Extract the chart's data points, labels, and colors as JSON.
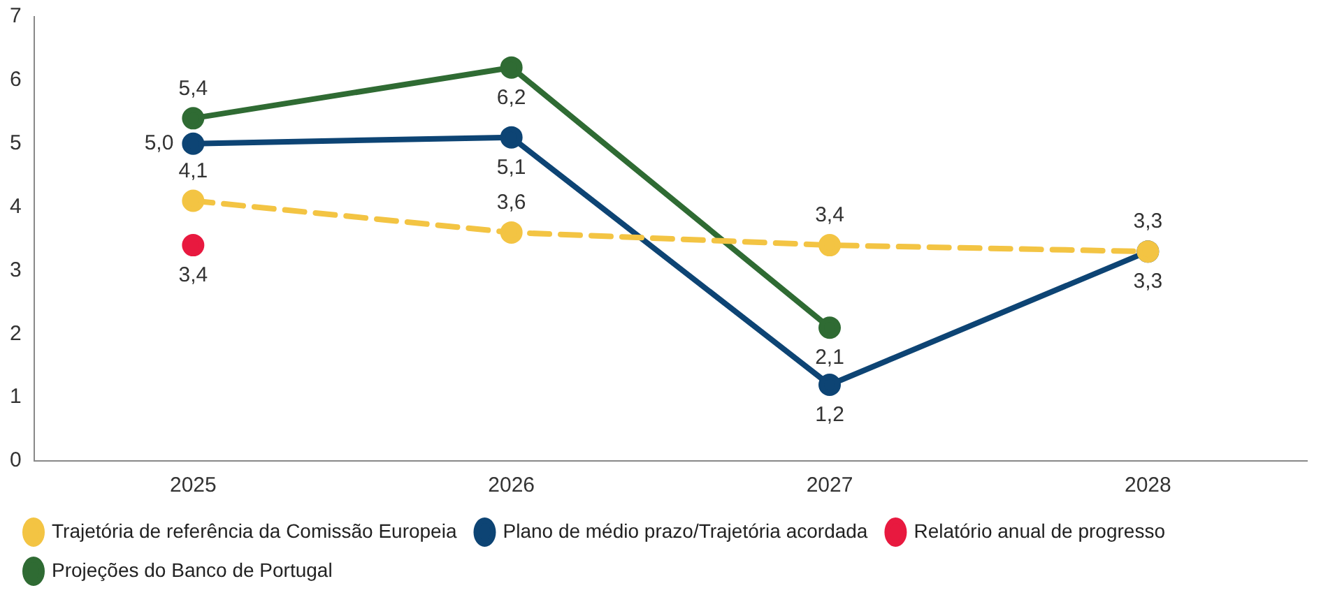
{
  "chart_data": {
    "type": "line",
    "categories": [
      "2025",
      "2026",
      "2027",
      "2028"
    ],
    "ylim": [
      0,
      7
    ],
    "yticks": [
      0,
      1,
      2,
      3,
      4,
      5,
      6,
      7
    ],
    "grid": false,
    "legend": "bottom",
    "marker": "circle",
    "series": [
      {
        "name": "Trajetória de referência da Comissão Europeia",
        "color": "#f3c443",
        "line_style": "dashed",
        "values": [
          4.1,
          3.6,
          3.4,
          3.3
        ],
        "value_labels": [
          "4,1",
          "3,6",
          "3,4",
          "3,3"
        ]
      },
      {
        "name": "Plano de médio prazo/Trajetória acordada",
        "color": "#0d4474",
        "values": [
          5.0,
          5.1,
          1.2,
          3.3
        ],
        "value_labels": [
          "5,0",
          "5,1",
          "1,2",
          "3,3"
        ]
      },
      {
        "name": "Relatório anual de progresso",
        "color": "#e8193f",
        "type": "scatter",
        "values": [
          3.4,
          null,
          null,
          null
        ],
        "value_labels": [
          "3,4",
          null,
          null,
          null
        ]
      },
      {
        "name": "Projeções do Banco de Portugal",
        "color": "#2f6b33",
        "values": [
          5.4,
          6.2,
          2.1,
          null
        ],
        "value_labels": [
          "5,4",
          "6,2",
          "2,1",
          null
        ]
      }
    ]
  }
}
